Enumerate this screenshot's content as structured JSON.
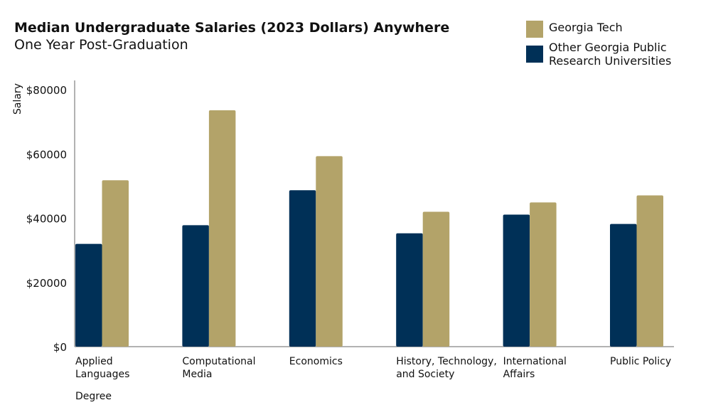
{
  "chart_data": {
    "type": "bar",
    "title": "Median Undergraduate Salaries (2023 Dollars) Anywhere",
    "subtitle": "One Year Post-Graduation",
    "xlabel": "Degree",
    "ylabel": "Salary",
    "ylim": [
      0,
      80000
    ],
    "yticks": [
      "$0",
      "$20000",
      "$40000",
      "$60000",
      "$80000"
    ],
    "ytick_values": [
      0,
      20000,
      40000,
      60000,
      80000
    ],
    "categories": [
      [
        "Applied",
        "Languages"
      ],
      [
        "Computational",
        "Media"
      ],
      [
        "Economics"
      ],
      [
        "History, Technology,",
        "and Society"
      ],
      [
        "International",
        "Affairs"
      ],
      [
        "Public Policy"
      ]
    ],
    "series": [
      {
        "name": "Other Georgia Public Research Universities",
        "color": "#003057",
        "values": [
          32000,
          37800,
          48700,
          35300,
          41100,
          38200
        ]
      },
      {
        "name": "Georgia Tech",
        "color": "#B3A369",
        "values": [
          51800,
          73600,
          59300,
          42000,
          44900,
          47100
        ]
      }
    ],
    "legend": {
      "position": "top-right",
      "entries": [
        [
          "Georgia Tech"
        ],
        [
          "Other Georgia Public",
          "Research Universities"
        ]
      ]
    },
    "grid": false
  }
}
